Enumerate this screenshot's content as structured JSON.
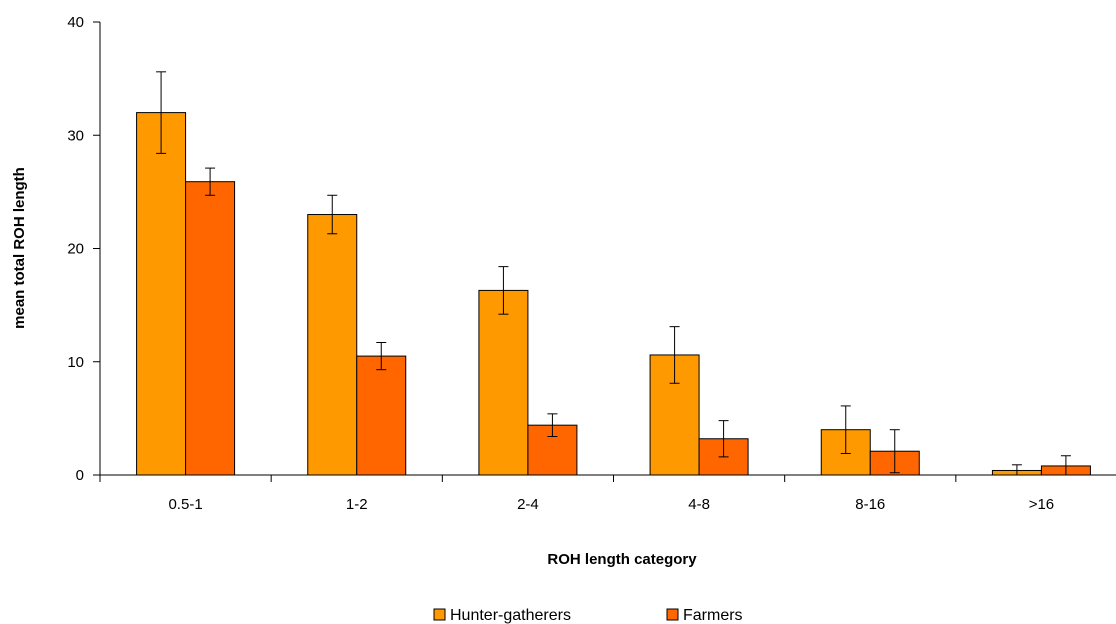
{
  "chart_data": {
    "type": "bar",
    "title": "",
    "xlabel": "ROH length category",
    "ylabel": "mean total ROH length",
    "categories": [
      "0.5-1",
      "1-2",
      "2-4",
      "4-8",
      "8-16",
      ">16"
    ],
    "series": [
      {
        "name": "Hunter-gatherers",
        "color": "#FF9900",
        "values": [
          32.0,
          23.0,
          16.3,
          10.6,
          4.0,
          0.4
        ],
        "error": [
          3.6,
          1.7,
          2.1,
          2.5,
          2.1,
          0.5
        ]
      },
      {
        "name": "Farmers",
        "color": "#FF6600",
        "values": [
          25.9,
          10.5,
          4.4,
          3.2,
          2.1,
          0.8
        ],
        "error": [
          1.2,
          1.2,
          1.0,
          1.6,
          1.9,
          0.9
        ]
      }
    ],
    "ylim": [
      0,
      40
    ],
    "yticks": [
      0,
      10,
      20,
      30,
      40
    ],
    "grid": false,
    "legend_position": "bottom-center"
  }
}
